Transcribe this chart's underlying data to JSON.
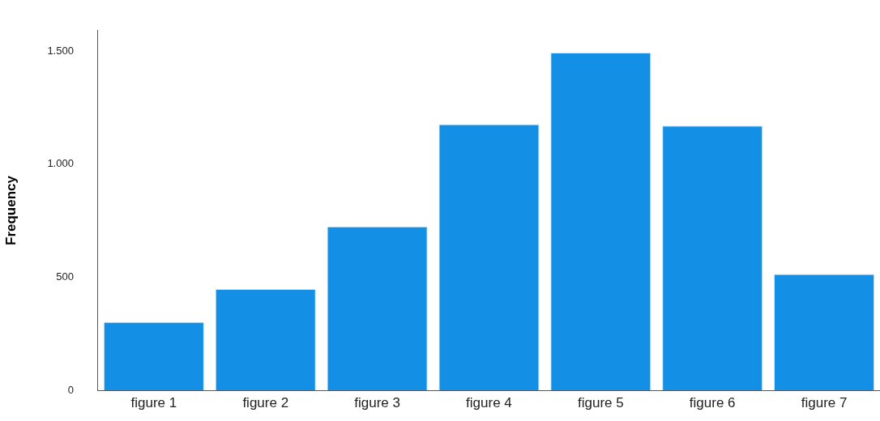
{
  "chart_data": {
    "type": "bar",
    "ylabel": "Frequency",
    "categories": [
      "figure 1",
      "figure 2",
      "figure 3",
      "figure 4",
      "figure 5",
      "figure 6",
      "figure 7"
    ],
    "values": [
      302,
      448,
      724,
      1176,
      1493,
      1170,
      514
    ],
    "color": "#1390e6",
    "ylim": [
      0,
      1590
    ],
    "yticks": [
      {
        "value": 0,
        "label": "0"
      },
      {
        "value": 500,
        "label": "500"
      },
      {
        "value": 1000,
        "label": "1.000"
      },
      {
        "value": 1500,
        "label": "1.500"
      }
    ],
    "grid": false,
    "legend": false
  }
}
